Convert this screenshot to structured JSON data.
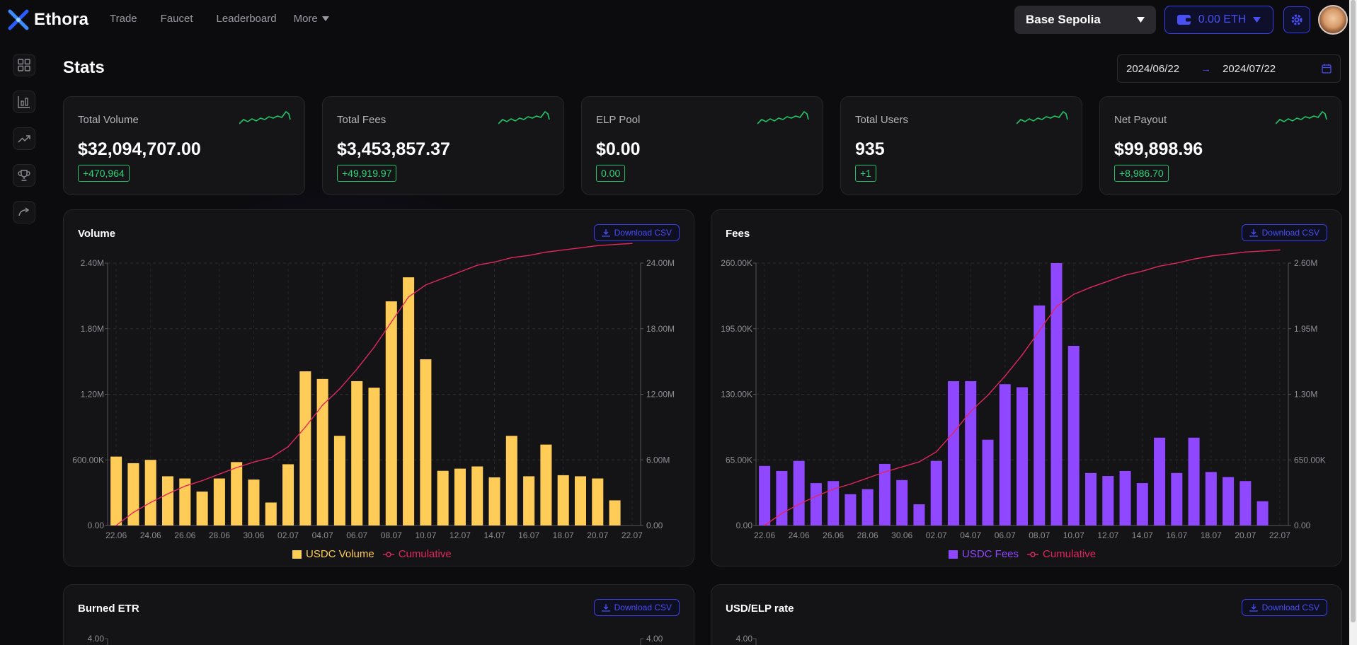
{
  "app": {
    "name": "Ethora"
  },
  "nav": {
    "items": [
      "Trade",
      "Faucet",
      "Leaderboard"
    ],
    "more": "More"
  },
  "network": {
    "selected": "Base Sepolia"
  },
  "wallet": {
    "balance": "0.00 ETH"
  },
  "page": {
    "title": "Stats"
  },
  "date_range": {
    "start": "2024/06/22",
    "end": "2024/07/22"
  },
  "sidebar": {
    "icons": [
      "grid-icon",
      "bar-chart-icon",
      "trending-up-icon",
      "trophy-icon",
      "redo-icon"
    ]
  },
  "colors": {
    "accent": "#4a4ff5",
    "positive": "#2fd47a",
    "volume_bar": "#ffcc57",
    "fees_bar": "#8f47ff",
    "cumulative": "#e0285c"
  },
  "stats": [
    {
      "label": "Total Volume",
      "value": "$32,094,707.00",
      "delta": "+470,964"
    },
    {
      "label": "Total Fees",
      "value": "$3,453,857.37",
      "delta": "+49,919.97"
    },
    {
      "label": "ELP Pool",
      "value": "$0.00",
      "delta": "0.00"
    },
    {
      "label": "Total Users",
      "value": "935",
      "delta": "+1"
    },
    {
      "label": "Net Payout",
      "value": "$99,898.96",
      "delta": "+8,986.70"
    }
  ],
  "panels": {
    "download_label": "Download CSV",
    "volume": {
      "title": "Volume"
    },
    "fees": {
      "title": "Fees"
    },
    "burned": {
      "title": "Burned ETR"
    },
    "usd_elp": {
      "title": "USD/ELP rate"
    }
  },
  "chart_data": [
    {
      "type": "bar",
      "title": "Volume",
      "categories": [
        "22.06",
        "23.06",
        "24.06",
        "25.06",
        "26.06",
        "27.06",
        "28.06",
        "29.06",
        "30.06",
        "01.07",
        "02.07",
        "03.07",
        "04.07",
        "05.07",
        "06.07",
        "07.07",
        "08.07",
        "09.07",
        "10.07",
        "11.07",
        "12.07",
        "13.07",
        "14.07",
        "15.07",
        "16.07",
        "17.07",
        "18.07",
        "19.07",
        "20.07",
        "21.07",
        "22.07"
      ],
      "x_tick_labels": [
        "22.06",
        "24.06",
        "26.06",
        "28.06",
        "30.06",
        "02.07",
        "04.07",
        "06.07",
        "08.07",
        "10.07",
        "12.07",
        "14.07",
        "16.07",
        "18.07",
        "20.07",
        "22.07"
      ],
      "y_left_ticks": [
        "0.00",
        "600.00K",
        "1.20M",
        "1.80M",
        "2.40M"
      ],
      "y_right_ticks": [
        "0.00",
        "6.00M",
        "12.00M",
        "18.00M",
        "24.00M"
      ],
      "ylim": [
        0,
        2400000
      ],
      "y2lim": [
        0,
        24000000
      ],
      "grid": true,
      "legend": "bottom",
      "series": [
        {
          "name": "USDC Volume",
          "type": "bar",
          "axis": "left",
          "values": [
            630000,
            570000,
            600000,
            450000,
            430000,
            310000,
            430000,
            580000,
            420000,
            210000,
            560000,
            1410000,
            1340000,
            820000,
            1320000,
            1260000,
            2050000,
            2270000,
            1520000,
            500000,
            520000,
            540000,
            440000,
            820000,
            450000,
            740000,
            460000,
            450000,
            430000,
            230000,
            0
          ]
        },
        {
          "name": "Cumulative",
          "type": "line",
          "axis": "right",
          "values": [
            0,
            1200000,
            2100000,
            2900000,
            3600000,
            4100000,
            4700000,
            5300000,
            5800000,
            6200000,
            7200000,
            9000000,
            11000000,
            12500000,
            14300000,
            16300000,
            18600000,
            20900000,
            22000000,
            22600000,
            23200000,
            23800000,
            24100000,
            24500000,
            24700000,
            25000000,
            25200000,
            25400000,
            25600000,
            25700000,
            25800000
          ]
        }
      ]
    },
    {
      "type": "bar",
      "title": "Fees",
      "categories": [
        "22.06",
        "23.06",
        "24.06",
        "25.06",
        "26.06",
        "27.06",
        "28.06",
        "29.06",
        "30.06",
        "01.07",
        "02.07",
        "03.07",
        "04.07",
        "05.07",
        "06.07",
        "07.07",
        "08.07",
        "09.07",
        "10.07",
        "11.07",
        "12.07",
        "13.07",
        "14.07",
        "15.07",
        "16.07",
        "17.07",
        "18.07",
        "19.07",
        "20.07",
        "21.07",
        "22.07"
      ],
      "x_tick_labels": [
        "22.06",
        "24.06",
        "26.06",
        "28.06",
        "30.06",
        "02.07",
        "04.07",
        "06.07",
        "08.07",
        "10.07",
        "12.07",
        "14.07",
        "16.07",
        "18.07",
        "20.07",
        "22.07"
      ],
      "y_left_ticks": [
        "0.00",
        "65.00K",
        "130.00K",
        "195.00K",
        "260.00K"
      ],
      "y_right_ticks": [
        "0.00",
        "650.00K",
        "1.30M",
        "1.95M",
        "2.60M"
      ],
      "ylim": [
        0,
        260000
      ],
      "y2lim": [
        0,
        2600000
      ],
      "grid": true,
      "legend": "bottom",
      "series": [
        {
          "name": "USDC Fees",
          "type": "bar",
          "axis": "left",
          "values": [
            59000,
            54000,
            64000,
            42000,
            44000,
            31000,
            36000,
            61000,
            45000,
            21000,
            64000,
            143000,
            143000,
            85000,
            140000,
            137000,
            218000,
            260000,
            178000,
            52000,
            49000,
            54000,
            42000,
            87000,
            52000,
            87000,
            53000,
            48000,
            44000,
            24000,
            0
          ]
        },
        {
          "name": "Cumulative",
          "type": "line",
          "axis": "right",
          "values": [
            0,
            120000,
            210000,
            290000,
            360000,
            410000,
            470000,
            530000,
            580000,
            630000,
            730000,
            920000,
            1130000,
            1290000,
            1480000,
            1690000,
            1930000,
            2170000,
            2290000,
            2360000,
            2420000,
            2480000,
            2520000,
            2570000,
            2600000,
            2640000,
            2670000,
            2690000,
            2710000,
            2720000,
            2730000
          ]
        }
      ]
    },
    {
      "type": "line",
      "title": "Burned ETR",
      "y_left_ticks": [
        "4.00"
      ],
      "y_right_ticks": [
        "4.00"
      ]
    },
    {
      "type": "line",
      "title": "USD/ELP rate",
      "y_left_ticks": [
        "4.00"
      ]
    }
  ]
}
